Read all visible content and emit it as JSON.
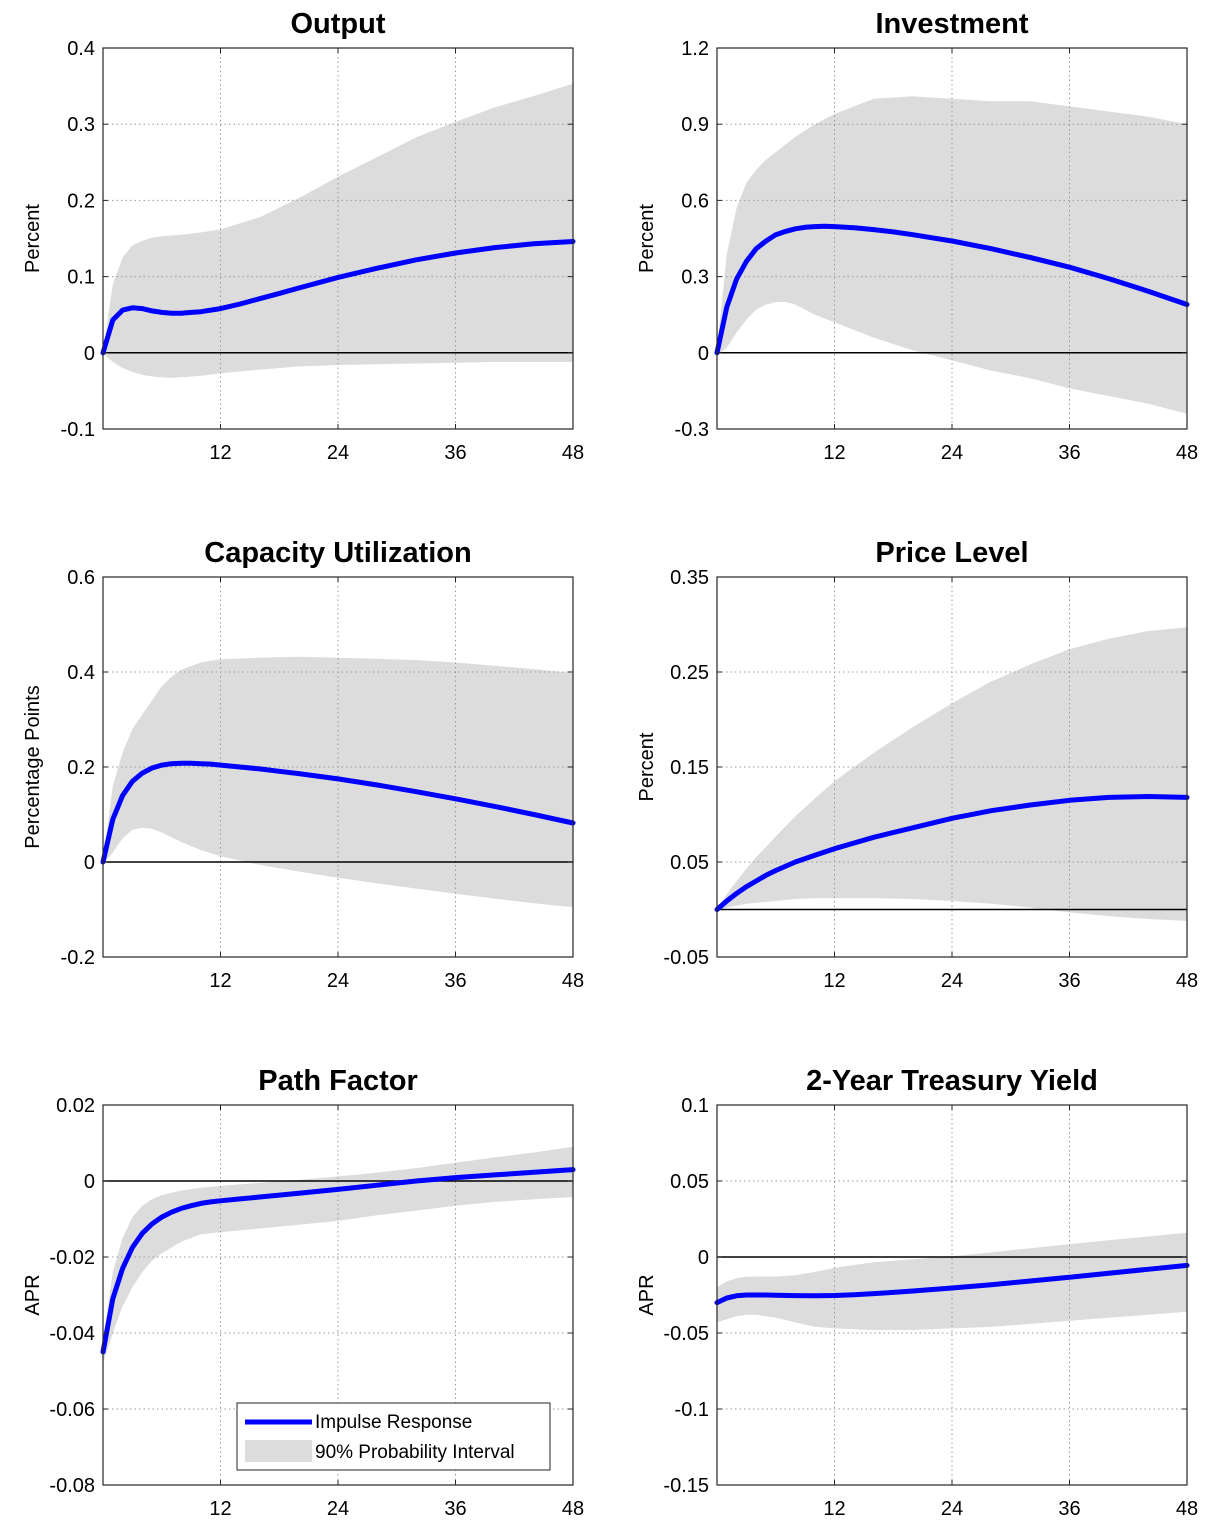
{
  "chart_data": [
    {
      "type": "line",
      "title": "Output",
      "ylabel": "Percent",
      "xlim": [
        0,
        48
      ],
      "ylim": [
        -0.1,
        0.4
      ],
      "xticks": [
        "12",
        "24",
        "36",
        "48"
      ],
      "yticks": [
        "-0.1",
        "0",
        "0.1",
        "0.2",
        "0.3",
        "0.4"
      ],
      "grid": true,
      "zero_line": true,
      "series": [
        {
          "x": [
            0,
            1,
            2,
            3,
            4,
            5,
            6,
            7,
            8,
            9,
            10,
            12,
            14,
            16,
            18,
            20,
            24,
            28,
            32,
            36,
            40,
            44,
            48
          ],
          "values": [
            0,
            0.043,
            0.056,
            0.059,
            0.058,
            0.055,
            0.053,
            0.052,
            0.052,
            0.053,
            0.054,
            0.058,
            0.064,
            0.071,
            0.078,
            0.085,
            0.099,
            0.111,
            0.122,
            0.131,
            0.138,
            0.143,
            0.146
          ]
        }
      ],
      "band": {
        "x": [
          0,
          1,
          2,
          3,
          4,
          5,
          6,
          7,
          8,
          10,
          12,
          16,
          20,
          24,
          28,
          32,
          36,
          40,
          44,
          48
        ],
        "lower": [
          -0.001,
          -0.012,
          -0.02,
          -0.025,
          -0.029,
          -0.031,
          -0.032,
          -0.033,
          -0.032,
          -0.03,
          -0.027,
          -0.022,
          -0.018,
          -0.016,
          -0.015,
          -0.014,
          -0.013,
          -0.012,
          -0.012,
          -0.012
        ],
        "upper": [
          0.001,
          0.09,
          0.125,
          0.141,
          0.147,
          0.151,
          0.153,
          0.154,
          0.155,
          0.158,
          0.162,
          0.178,
          0.203,
          0.231,
          0.257,
          0.283,
          0.303,
          0.322,
          0.337,
          0.353
        ]
      }
    },
    {
      "type": "line",
      "title": "Investment",
      "ylabel": "Percent",
      "xlim": [
        0,
        48
      ],
      "ylim": [
        -0.3,
        1.2
      ],
      "xticks": [
        "12",
        "24",
        "36",
        "48"
      ],
      "yticks": [
        "-0.3",
        "0",
        "0.3",
        "0.6",
        "0.9",
        "1.2"
      ],
      "grid": true,
      "zero_line": true,
      "series": [
        {
          "x": [
            0,
            1,
            2,
            3,
            4,
            5,
            6,
            7,
            8,
            9,
            10,
            11,
            12,
            14,
            16,
            18,
            20,
            24,
            28,
            32,
            36,
            40,
            44,
            48
          ],
          "values": [
            0,
            0.18,
            0.29,
            0.36,
            0.41,
            0.44,
            0.465,
            0.478,
            0.488,
            0.494,
            0.497,
            0.498,
            0.497,
            0.492,
            0.485,
            0.476,
            0.465,
            0.44,
            0.41,
            0.375,
            0.337,
            0.292,
            0.243,
            0.19
          ]
        }
      ],
      "band": {
        "x": [
          0,
          1,
          2,
          3,
          4,
          5,
          6,
          7,
          8,
          10,
          12,
          16,
          20,
          24,
          28,
          32,
          36,
          40,
          44,
          48
        ],
        "lower": [
          -0.01,
          0.02,
          0.08,
          0.13,
          0.17,
          0.19,
          0.2,
          0.2,
          0.19,
          0.15,
          0.12,
          0.06,
          0.01,
          -0.03,
          -0.07,
          -0.1,
          -0.14,
          -0.17,
          -0.2,
          -0.24
        ],
        "upper": [
          0.01,
          0.39,
          0.57,
          0.67,
          0.72,
          0.76,
          0.79,
          0.82,
          0.85,
          0.9,
          0.94,
          1.0,
          1.01,
          1.0,
          0.99,
          0.99,
          0.97,
          0.95,
          0.93,
          0.9
        ]
      }
    },
    {
      "type": "line",
      "title": "Capacity Utilization",
      "ylabel": "Percentage Points",
      "xlim": [
        0,
        48
      ],
      "ylim": [
        -0.2,
        0.6
      ],
      "xticks": [
        "12",
        "24",
        "36",
        "48"
      ],
      "yticks": [
        "-0.2",
        "0",
        "0.2",
        "0.4",
        "0.6"
      ],
      "grid": true,
      "zero_line": true,
      "series": [
        {
          "x": [
            0,
            1,
            2,
            3,
            4,
            5,
            6,
            7,
            8,
            9,
            10,
            11,
            12,
            14,
            16,
            18,
            20,
            24,
            28,
            32,
            36,
            40,
            44,
            48
          ],
          "values": [
            0,
            0.09,
            0.14,
            0.17,
            0.187,
            0.198,
            0.204,
            0.207,
            0.208,
            0.208,
            0.207,
            0.206,
            0.204,
            0.2,
            0.196,
            0.191,
            0.186,
            0.175,
            0.162,
            0.148,
            0.133,
            0.117,
            0.1,
            0.082
          ]
        }
      ],
      "band": {
        "x": [
          0,
          1,
          2,
          3,
          4,
          5,
          6,
          7,
          8,
          10,
          12,
          16,
          20,
          24,
          28,
          32,
          36,
          40,
          44,
          48
        ],
        "lower": [
          -0.005,
          0.02,
          0.05,
          0.068,
          0.072,
          0.07,
          0.062,
          0.052,
          0.042,
          0.025,
          0.012,
          -0.006,
          -0.02,
          -0.033,
          -0.045,
          -0.056,
          -0.067,
          -0.077,
          -0.087,
          -0.095
        ],
        "upper": [
          0.005,
          0.16,
          0.23,
          0.28,
          0.31,
          0.34,
          0.37,
          0.39,
          0.405,
          0.42,
          0.427,
          0.43,
          0.432,
          0.43,
          0.428,
          0.425,
          0.42,
          0.413,
          0.406,
          0.398
        ]
      }
    },
    {
      "type": "line",
      "title": "Price Level",
      "ylabel": "Percent",
      "xlim": [
        0,
        48
      ],
      "ylim": [
        -0.05,
        0.35
      ],
      "xticks": [
        "12",
        "24",
        "36",
        "48"
      ],
      "yticks": [
        "-0.05",
        "0.05",
        "0.15",
        "0.25",
        "0.35"
      ],
      "grid": true,
      "zero_line": true,
      "series": [
        {
          "x": [
            0,
            1,
            2,
            3,
            4,
            5,
            6,
            8,
            10,
            12,
            14,
            16,
            18,
            20,
            24,
            28,
            32,
            36,
            40,
            44,
            48
          ],
          "values": [
            0,
            0.009,
            0.017,
            0.024,
            0.03,
            0.036,
            0.041,
            0.05,
            0.057,
            0.064,
            0.07,
            0.076,
            0.081,
            0.086,
            0.096,
            0.104,
            0.11,
            0.115,
            0.118,
            0.119,
            0.118
          ]
        }
      ],
      "band": {
        "x": [
          0,
          1,
          2,
          3,
          4,
          6,
          8,
          10,
          12,
          16,
          20,
          24,
          28,
          32,
          36,
          40,
          44,
          48
        ],
        "lower": [
          -0.001,
          0.002,
          0.004,
          0.006,
          0.007,
          0.009,
          0.011,
          0.012,
          0.012,
          0.012,
          0.011,
          0.009,
          0.006,
          0.002,
          -0.003,
          -0.007,
          -0.01,
          -0.012
        ],
        "upper": [
          0.001,
          0.016,
          0.03,
          0.043,
          0.055,
          0.077,
          0.098,
          0.117,
          0.135,
          0.165,
          0.192,
          0.217,
          0.24,
          0.258,
          0.274,
          0.285,
          0.293,
          0.297
        ]
      }
    },
    {
      "type": "line",
      "title": "Path Factor",
      "ylabel": "APR",
      "xlim": [
        0,
        48
      ],
      "ylim": [
        -0.08,
        0.02
      ],
      "xticks": [
        "12",
        "24",
        "36",
        "48"
      ],
      "yticks": [
        "-0.08",
        "-0.06",
        "-0.04",
        "-0.02",
        "0",
        "0.02"
      ],
      "grid": true,
      "zero_line": true,
      "series": [
        {
          "x": [
            0,
            1,
            2,
            3,
            4,
            5,
            6,
            7,
            8,
            9,
            10,
            11,
            12,
            14,
            16,
            18,
            20,
            24,
            28,
            32,
            36,
            40,
            44,
            48
          ],
          "values": [
            -0.045,
            -0.031,
            -0.023,
            -0.0175,
            -0.0138,
            -0.0113,
            -0.0095,
            -0.0082,
            -0.0072,
            -0.0065,
            -0.0059,
            -0.0055,
            -0.0052,
            -0.0047,
            -0.0042,
            -0.0037,
            -0.0032,
            -0.0022,
            -0.0011,
            0.0,
            0.0009,
            0.0016,
            0.0023,
            0.003
          ]
        }
      ],
      "band": {
        "x": [
          0,
          1,
          2,
          3,
          4,
          5,
          6,
          8,
          10,
          12,
          16,
          20,
          24,
          28,
          32,
          36,
          40,
          44,
          48
        ],
        "lower": [
          -0.048,
          -0.04,
          -0.033,
          -0.028,
          -0.024,
          -0.021,
          -0.019,
          -0.016,
          -0.014,
          -0.0135,
          -0.0125,
          -0.0115,
          -0.0105,
          -0.009,
          -0.0078,
          -0.0065,
          -0.0055,
          -0.0048,
          -0.0042
        ],
        "upper": [
          -0.042,
          -0.024,
          -0.015,
          -0.0095,
          -0.0065,
          -0.0048,
          -0.0037,
          -0.0025,
          -0.0018,
          -0.0013,
          -0.0005,
          0.0003,
          0.0012,
          0.0022,
          0.0034,
          0.0048,
          0.0062,
          0.0075,
          0.009
        ]
      }
    },
    {
      "type": "line",
      "title": "2-Year Treasury Yield",
      "ylabel": "APR",
      "xlim": [
        0,
        48
      ],
      "ylim": [
        -0.15,
        0.1
      ],
      "xticks": [
        "12",
        "24",
        "36",
        "48"
      ],
      "yticks": [
        "-0.15",
        "-0.1",
        "-0.05",
        "0",
        "0.05",
        "0.1"
      ],
      "grid": true,
      "zero_line": true,
      "series": [
        {
          "x": [
            0,
            1,
            2,
            3,
            4,
            5,
            6,
            8,
            10,
            12,
            14,
            16,
            18,
            20,
            24,
            28,
            32,
            36,
            40,
            44,
            48
          ],
          "values": [
            -0.03,
            -0.027,
            -0.0255,
            -0.025,
            -0.025,
            -0.025,
            -0.0252,
            -0.0254,
            -0.0255,
            -0.0253,
            -0.0248,
            -0.0241,
            -0.0233,
            -0.0224,
            -0.0204,
            -0.0182,
            -0.0158,
            -0.0133,
            -0.0107,
            -0.0081,
            -0.0055
          ]
        }
      ],
      "band": {
        "x": [
          0,
          1,
          2,
          3,
          4,
          5,
          6,
          8,
          10,
          12,
          16,
          20,
          24,
          28,
          32,
          36,
          40,
          44,
          48
        ],
        "lower": [
          -0.043,
          -0.041,
          -0.039,
          -0.038,
          -0.038,
          -0.039,
          -0.04,
          -0.043,
          -0.046,
          -0.047,
          -0.048,
          -0.048,
          -0.047,
          -0.046,
          -0.044,
          -0.042,
          -0.04,
          -0.038,
          -0.036
        ],
        "upper": [
          -0.02,
          -0.016,
          -0.014,
          -0.013,
          -0.0128,
          -0.0128,
          -0.0128,
          -0.012,
          -0.0098,
          -0.0072,
          -0.0035,
          -0.0015,
          0.0005,
          0.003,
          0.0058,
          0.0085,
          0.011,
          0.0135,
          0.016
        ]
      }
    }
  ],
  "legend": {
    "impulse_label": "Impulse Response",
    "interval_label": "90% Probability Interval",
    "line_color": "#0000ff",
    "band_color": "#dcdcdc"
  }
}
